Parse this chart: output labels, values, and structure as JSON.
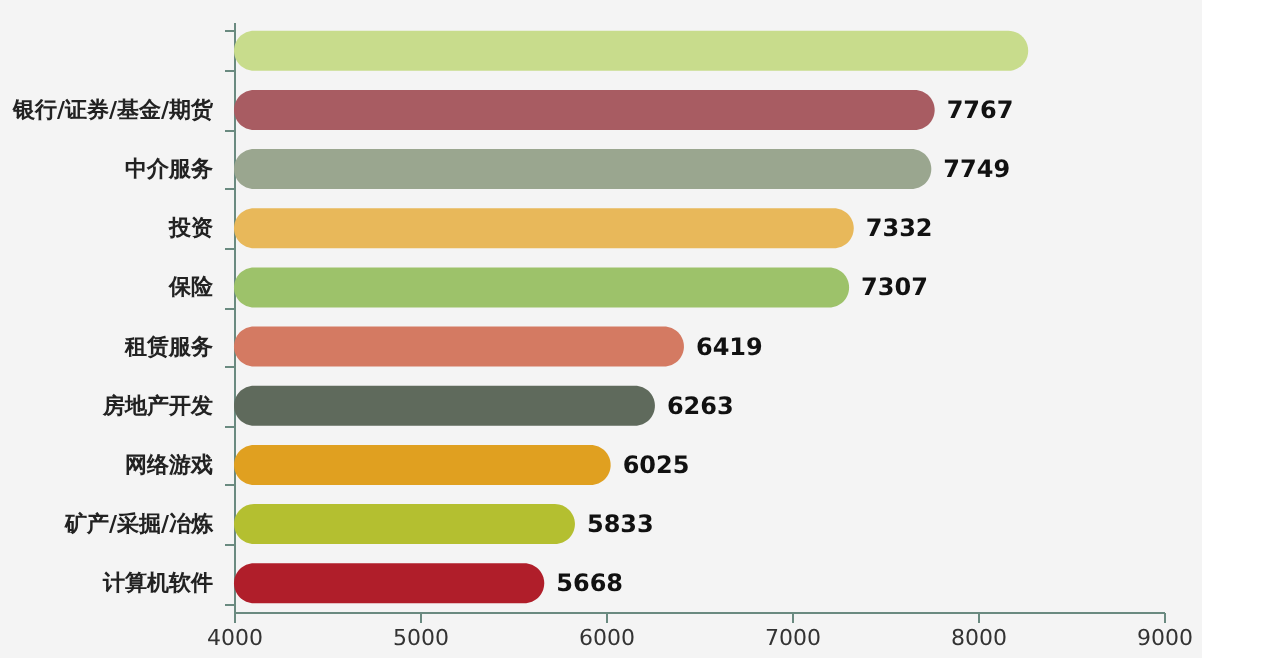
{
  "chart_data": {
    "type": "bar",
    "orientation": "horizontal",
    "categories": [
      null,
      "银行/证券/基金/期货",
      "中介服务",
      "投资",
      "保险",
      "租赁服务",
      "房地产开发",
      "网络游戏",
      "矿产/采掘/冶炼",
      "计算机软件"
    ],
    "values": [
      8270,
      7767,
      7749,
      7332,
      7307,
      6419,
      6263,
      6025,
      5833,
      5668
    ],
    "value_labels": [
      null,
      "7767",
      "7749",
      "7332",
      "7307",
      "6419",
      "6263",
      "6025",
      "5833",
      "5668"
    ],
    "colors": [
      "#c8dc8c",
      "#a85c62",
      "#9aa68f",
      "#e8b85a",
      "#9dc26a",
      "#d47a62",
      "#5f6a5c",
      "#e0a020",
      "#b4bf30",
      "#b01e2a"
    ],
    "xlim": [
      4000,
      9000
    ],
    "xticks": [
      4000,
      5000,
      6000,
      7000,
      8000,
      9000
    ],
    "grid": false
  }
}
